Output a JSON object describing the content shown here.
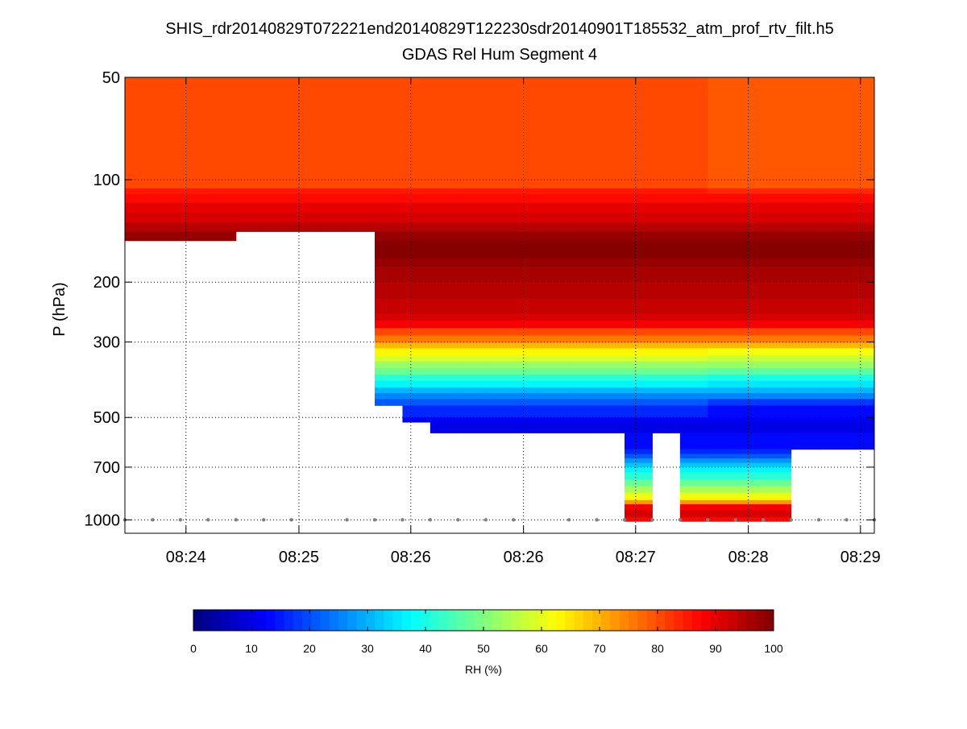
{
  "chart_data": {
    "type": "heatmap",
    "title": "SHIS_rdr20140829T072221end20140829T122230sdr20140901T185532_atm_prof_rtv_filt.h5",
    "subtitle": "GDAS Rel Hum Segment 4",
    "xlabel": "",
    "ylabel": "P (hPa)",
    "y_scale": "log",
    "y_reversed": true,
    "ylim": [
      50,
      1095
    ],
    "xlim": [
      0,
      27
    ],
    "x_units": "sample index",
    "yticks": [
      50,
      100,
      200,
      300,
      500,
      700,
      1000
    ],
    "xticks": [
      {
        "value": 2.2,
        "label": "08:24"
      },
      {
        "value": 6.27,
        "label": "08:25"
      },
      {
        "value": 10.3,
        "label": "08:26"
      },
      {
        "value": 14.36,
        "label": "08:26"
      },
      {
        "value": 18.4,
        "label": "08:27"
      },
      {
        "value": 22.46,
        "label": "08:28"
      },
      {
        "value": 26.5,
        "label": "08:29"
      }
    ],
    "grid": true,
    "colorbar": {
      "label": "RH (%)",
      "range": [
        0,
        100
      ],
      "ticks": [
        0,
        10,
        20,
        30,
        40,
        50,
        60,
        70,
        80,
        90,
        100
      ],
      "colormap": "jet",
      "levels": 64
    },
    "pressure_edges_hPa": [
      50,
      106,
      110,
      117,
      125,
      134,
      142,
      151,
      170,
      180,
      200,
      224,
      247,
      259,
      273,
      287,
      301,
      313,
      328,
      342,
      358,
      374,
      390,
      408,
      424,
      441,
      461,
      500,
      516,
      555,
      620,
      640,
      660,
      680,
      700,
      725,
      760,
      795,
      830,
      855,
      875,
      900,
      935,
      985,
      1010
    ],
    "profiles": {
      "main": [
        81,
        85,
        87,
        90,
        92,
        94.5,
        97,
        99,
        97,
        96,
        95,
        93.5,
        92,
        88,
        81,
        75,
        70,
        64,
        58,
        52,
        47,
        41,
        36,
        31,
        26,
        21,
        16,
        12,
        10,
        14,
        17,
        21,
        27,
        32,
        37,
        42,
        48,
        54,
        60,
        64,
        72,
        88,
        91,
        87
      ],
      "east": [
        79,
        83,
        86,
        90,
        92,
        94.5,
        97,
        99,
        97,
        96,
        95,
        93.5,
        92,
        89,
        81,
        75,
        70,
        62,
        57,
        52,
        46,
        40,
        35,
        30,
        25,
        18,
        14,
        12,
        10,
        14,
        17,
        21,
        27,
        32,
        37,
        42,
        48,
        54,
        60,
        64,
        72,
        88,
        91,
        87
      ]
    },
    "columns": [
      {
        "profile": "main",
        "bottom_hPa": 151
      },
      {
        "profile": "main",
        "bottom_hPa": 151
      },
      {
        "profile": "main",
        "bottom_hPa": 151
      },
      {
        "profile": "main",
        "bottom_hPa": 151
      },
      {
        "profile": "main",
        "bottom_hPa": 142
      },
      {
        "profile": "main",
        "bottom_hPa": 142
      },
      {
        "profile": "main",
        "bottom_hPa": 142
      },
      {
        "profile": "main",
        "bottom_hPa": 142
      },
      {
        "profile": "main",
        "bottom_hPa": 142
      },
      {
        "profile": "main",
        "bottom_hPa": 461
      },
      {
        "profile": "main",
        "bottom_hPa": 516
      },
      {
        "profile": "main",
        "bottom_hPa": 555
      },
      {
        "profile": "main",
        "bottom_hPa": 555
      },
      {
        "profile": "main",
        "bottom_hPa": 555
      },
      {
        "profile": "main",
        "bottom_hPa": 555
      },
      {
        "profile": "main",
        "bottom_hPa": 555
      },
      {
        "profile": "main",
        "bottom_hPa": 555
      },
      {
        "profile": "main",
        "bottom_hPa": 555
      },
      {
        "profile": "main",
        "bottom_hPa": 1010
      },
      {
        "profile": "main",
        "bottom_hPa": 555
      },
      {
        "profile": "main",
        "bottom_hPa": 1010
      },
      {
        "profile": "east",
        "bottom_hPa": 1010
      },
      {
        "profile": "east",
        "bottom_hPa": 1010
      },
      {
        "profile": "east",
        "bottom_hPa": 1010
      },
      {
        "profile": "east",
        "bottom_hPa": 620
      },
      {
        "profile": "east",
        "bottom_hPa": 620
      },
      {
        "profile": "east",
        "bottom_hPa": 620
      }
    ],
    "surface_markers": {
      "pressure_hPa": 1000,
      "sample_edges": [
        0,
        1,
        2,
        3,
        4,
        5,
        6,
        8,
        9,
        10,
        11,
        12,
        13,
        14,
        16,
        17,
        18,
        19,
        20,
        21,
        22,
        23,
        24,
        25,
        26,
        27
      ],
      "color": "#808080"
    }
  }
}
